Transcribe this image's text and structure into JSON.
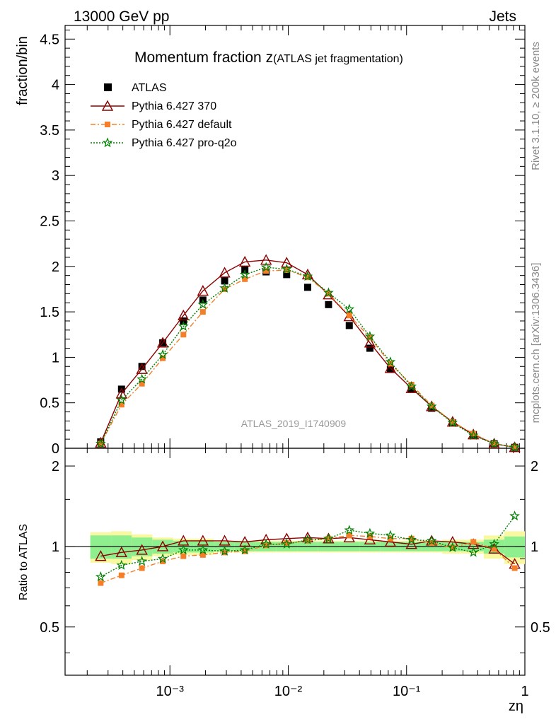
{
  "header": {
    "left": "13000 GeV pp",
    "right": "Jets"
  },
  "side_labels": {
    "rivet": "Rivet 3.1.10, ≥ 200k events",
    "mcplots": "mcplots.cern.ch [arXiv:1306.3436]"
  },
  "watermark": "ATLAS_2019_I1740909",
  "colors": {
    "atlas": "#000000",
    "py370": "#8b0000",
    "pydefault": "#f57f28",
    "pyq2o": "#008000",
    "band_green": "#8fef8f",
    "band_yellow": "#f8f8a0"
  },
  "chart_data": {
    "type": "scatter",
    "title_main": "Momentum fraction z",
    "title_sub": "(ATLAS jet fragmentation)",
    "xlabel": "zη",
    "ylabel": "fraction/bin",
    "ratio_ylabel": "Ratio to ATLAS",
    "x_scale": "log",
    "xlim": [
      0.00013,
      1.0
    ],
    "ylim_main": [
      0,
      4.65
    ],
    "ylim_ratio": [
      0.33,
      2.33
    ],
    "x_ticks": [
      {
        "value": 0.001,
        "label": "10⁻³"
      },
      {
        "value": 0.01,
        "label": "10⁻²"
      },
      {
        "value": 0.1,
        "label": "10⁻¹"
      },
      {
        "value": 1,
        "label": "1"
      }
    ],
    "y_ticks_main": [
      "0",
      "0.5",
      "1",
      "1.5",
      "2",
      "2.5",
      "3",
      "3.5",
      "4",
      "4.5"
    ],
    "y_ticks_ratio": [
      "0.5",
      "1",
      "2"
    ],
    "x": [
      0.00026,
      0.00039,
      0.00058,
      0.00087,
      0.0013,
      0.0019,
      0.0029,
      0.0043,
      0.0065,
      0.0097,
      0.0146,
      0.0219,
      0.0328,
      0.049,
      0.073,
      0.11,
      0.163,
      0.245,
      0.367,
      0.55,
      0.82
    ],
    "series": [
      {
        "name": "ATLAS",
        "marker": "square",
        "values": [
          0.07,
          0.65,
          0.9,
          1.16,
          1.4,
          1.63,
          1.84,
          1.96,
          1.94,
          1.91,
          1.77,
          1.58,
          1.35,
          1.1,
          0.87,
          0.65,
          0.44,
          0.28,
          0.15,
          0.05,
          0.01
        ]
      },
      {
        "name": "Pythia 6.427 370",
        "marker": "triangle",
        "style": "solid",
        "values": [
          0.06,
          0.6,
          0.87,
          1.16,
          1.46,
          1.73,
          1.93,
          2.05,
          2.07,
          2.04,
          1.91,
          1.69,
          1.45,
          1.16,
          0.88,
          0.66,
          0.46,
          0.29,
          0.15,
          0.05,
          0.01
        ],
        "ratio": [
          0.92,
          0.95,
          0.97,
          1.0,
          1.05,
          1.05,
          1.05,
          1.04,
          1.06,
          1.07,
          1.08,
          1.07,
          1.08,
          1.06,
          1.04,
          1.02,
          1.05,
          1.04,
          1.02,
          0.98,
          0.86
        ]
      },
      {
        "name": "Pythia 6.427 default",
        "marker": "square",
        "style": "dashdot",
        "values": [
          0.05,
          0.48,
          0.71,
          0.99,
          1.25,
          1.5,
          1.75,
          1.86,
          1.95,
          1.96,
          1.88,
          1.7,
          1.46,
          1.22,
          0.93,
          0.7,
          0.47,
          0.29,
          0.16,
          0.05,
          0.01
        ],
        "ratio": [
          0.73,
          0.78,
          0.83,
          0.88,
          0.92,
          0.93,
          0.95,
          0.96,
          1.01,
          1.03,
          1.05,
          1.07,
          1.1,
          1.09,
          1.07,
          1.07,
          1.03,
          0.99,
          1.04,
          0.98,
          0.83
        ]
      },
      {
        "name": "Pythia 6.427 pro-q2o",
        "marker": "star",
        "style": "dotted",
        "values": [
          0.05,
          0.53,
          0.76,
          1.03,
          1.34,
          1.58,
          1.76,
          1.91,
          1.99,
          1.97,
          1.89,
          1.71,
          1.53,
          1.23,
          0.95,
          0.68,
          0.46,
          0.28,
          0.14,
          0.05,
          0.01
        ],
        "ratio": [
          0.77,
          0.85,
          0.88,
          0.9,
          0.97,
          0.97,
          0.96,
          0.97,
          1.02,
          1.02,
          1.06,
          1.07,
          1.15,
          1.12,
          1.1,
          1.06,
          1.05,
          0.99,
          0.95,
          1.02,
          1.3
        ]
      }
    ],
    "band_outer": [
      0.13,
      0.14,
      0.11,
      0.08,
      0.07,
      0.07,
      0.05,
      0.05,
      0.05,
      0.05,
      0.05,
      0.05,
      0.05,
      0.05,
      0.05,
      0.05,
      0.05,
      0.06,
      0.06,
      0.1,
      0.14
    ],
    "band_inner": [
      0.1,
      0.1,
      0.08,
      0.06,
      0.05,
      0.05,
      0.04,
      0.04,
      0.04,
      0.04,
      0.04,
      0.04,
      0.04,
      0.04,
      0.04,
      0.04,
      0.04,
      0.04,
      0.04,
      0.06,
      0.09
    ]
  }
}
